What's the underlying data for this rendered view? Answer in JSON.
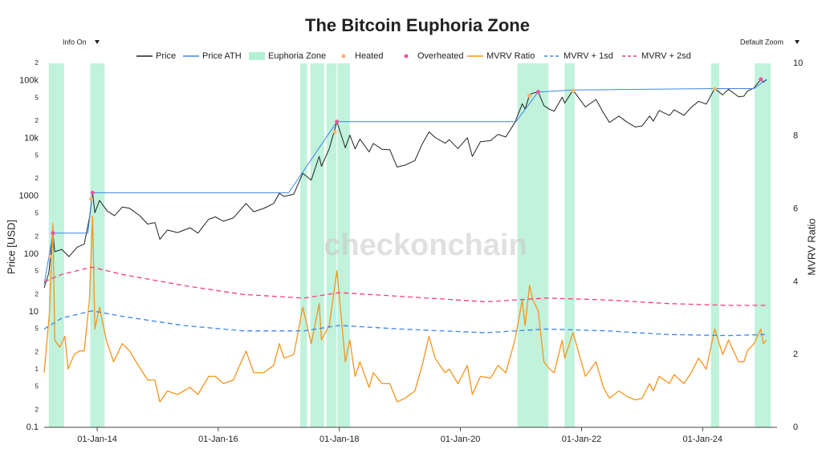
{
  "chart_data": {
    "type": "line",
    "title": "The Bitcoin Euphoria Zone",
    "controls": [
      "Info On",
      "Default Zoom"
    ],
    "watermark": "checkonchain",
    "ylabel": "Price [USD]",
    "y2label": "MVRV Ratio",
    "log_y": true,
    "grid": false,
    "legend": "top",
    "xlim": [
      "2013-02-15",
      "2025-03-25"
    ],
    "xticks": [
      {
        "value": "2014-01-01",
        "label": "01-Jan-14"
      },
      {
        "value": "2016-01-01",
        "label": "01-Jan-16"
      },
      {
        "value": "2018-01-01",
        "label": "01-Jan-18"
      },
      {
        "value": "2020-01-01",
        "label": "01-Jan-20"
      },
      {
        "value": "2022-01-01",
        "label": "01-Jan-22"
      },
      {
        "value": "2024-01-01",
        "label": "01-Jan-24"
      }
    ],
    "ylim": [
      0.1,
      200000
    ],
    "yticks": [
      0.1,
      {
        "value": 0.2,
        "label": "2"
      },
      {
        "value": 0.5,
        "label": "5"
      },
      1,
      {
        "value": 2,
        "label": "2"
      },
      {
        "value": 5,
        "label": "5"
      },
      10,
      {
        "value": 20,
        "label": "2"
      },
      {
        "value": 50,
        "label": "5"
      },
      100,
      {
        "value": 200,
        "label": "2"
      },
      {
        "value": 500,
        "label": "5"
      },
      1000,
      {
        "value": 2000,
        "label": "2"
      },
      {
        "value": 5000,
        "label": "5"
      },
      {
        "value": 10000,
        "label": "10k"
      },
      {
        "value": 20000,
        "label": "2"
      },
      {
        "value": 50000,
        "label": "5"
      },
      {
        "value": 100000,
        "label": "100k"
      },
      {
        "value": 200000,
        "label": "2"
      }
    ],
    "y2lim": [
      0,
      10
    ],
    "y2ticks": [
      0,
      2,
      4,
      6,
      8,
      10
    ],
    "series": [
      {
        "name": "Price",
        "style": "line",
        "color": "#222222",
        "x": [
          "2013-02-15",
          "2013-03-15",
          "2013-04-09",
          "2013-04-20",
          "2013-06-01",
          "2013-07-15",
          "2013-09-01",
          "2013-10-15",
          "2013-11-15",
          "2013-12-04",
          "2013-12-18",
          "2014-01-15",
          "2014-03-01",
          "2014-04-15",
          "2014-06-01",
          "2014-07-15",
          "2014-09-15",
          "2014-11-01",
          "2014-12-15",
          "2015-01-14",
          "2015-03-01",
          "2015-05-01",
          "2015-07-15",
          "2015-09-01",
          "2015-11-04",
          "2015-12-15",
          "2016-02-01",
          "2016-04-01",
          "2016-06-17",
          "2016-08-02",
          "2016-10-01",
          "2016-12-01",
          "2017-01-04",
          "2017-02-01",
          "2017-04-01",
          "2017-05-25",
          "2017-07-15",
          "2017-09-01",
          "2017-09-15",
          "2017-11-01",
          "2017-12-17",
          "2018-02-06",
          "2018-03-05",
          "2018-04-06",
          "2018-05-05",
          "2018-06-29",
          "2018-07-25",
          "2018-09-15",
          "2018-11-01",
          "2018-12-15",
          "2019-02-01",
          "2019-04-01",
          "2019-05-15",
          "2019-06-26",
          "2019-08-01",
          "2019-09-30",
          "2019-10-26",
          "2019-12-17",
          "2020-02-12",
          "2020-03-13",
          "2020-05-01",
          "2020-07-01",
          "2020-08-15",
          "2020-10-01",
          "2020-11-25",
          "2021-01-08",
          "2021-01-25",
          "2021-02-21",
          "2021-03-13",
          "2021-04-14",
          "2021-05-19",
          "2021-06-22",
          "2021-07-20",
          "2021-09-06",
          "2021-09-21",
          "2021-11-10",
          "2022-01-24",
          "2022-03-29",
          "2022-05-12",
          "2022-06-18",
          "2022-08-14",
          "2022-10-01",
          "2022-11-21",
          "2023-01-01",
          "2023-02-15",
          "2023-03-10",
          "2023-04-14",
          "2023-06-15",
          "2023-07-13",
          "2023-09-11",
          "2023-10-24",
          "2023-12-08",
          "2024-01-23",
          "2024-03-14",
          "2024-05-01",
          "2024-06-05",
          "2024-08-05",
          "2024-09-06",
          "2024-09-27",
          "2024-11-06",
          "2024-12-17",
          "2025-01-01",
          "2025-01-20"
        ],
        "values": [
          26,
          47,
          230,
          110,
          120,
          90,
          130,
          150,
          420,
          1150,
          520,
          850,
          560,
          460,
          650,
          620,
          460,
          330,
          350,
          180,
          260,
          235,
          285,
          230,
          400,
          440,
          370,
          420,
          750,
          540,
          615,
          750,
          1130,
          990,
          1090,
          2500,
          1900,
          4900,
          3300,
          6700,
          19500,
          6900,
          11500,
          6600,
          9800,
          5850,
          8200,
          6500,
          6400,
          3200,
          3450,
          4150,
          8000,
          13000,
          10400,
          8300,
          9500,
          6700,
          10300,
          4900,
          8800,
          9200,
          11800,
          10600,
          19000,
          40000,
          32000,
          57000,
          61000,
          64000,
          37000,
          32000,
          29800,
          52000,
          41000,
          69000,
          35000,
          47500,
          28000,
          19000,
          24400,
          19300,
          15800,
          16500,
          24500,
          20000,
          30500,
          25000,
          31400,
          25100,
          34500,
          44000,
          39500,
          73000,
          57000,
          71000,
          53000,
          54000,
          66000,
          75000,
          106000,
          94000,
          104000
        ]
      },
      {
        "name": "Price ATH",
        "style": "line",
        "color": "#3d85e6",
        "x": [
          "2013-02-15",
          "2013-04-09",
          "2013-11-06",
          "2013-12-04",
          "2017-03-01",
          "2017-12-17",
          "2020-12-01",
          "2021-04-14",
          "2021-11-10",
          "2024-03-14",
          "2024-11-06",
          "2025-01-20"
        ],
        "values": [
          30,
          230,
          230,
          1150,
          1150,
          19500,
          19500,
          64000,
          69000,
          73000,
          73000,
          106000
        ]
      },
      {
        "name": "Euphoria Zone",
        "style": "band",
        "color": "#b5f0d6",
        "ranges": [
          [
            "2013-03-15",
            "2013-06-15"
          ],
          [
            "2013-11-20",
            "2014-02-15"
          ],
          [
            "2017-05-10",
            "2017-06-20"
          ],
          [
            "2017-07-10",
            "2017-10-01"
          ],
          [
            "2017-10-15",
            "2017-12-15"
          ],
          [
            "2017-12-20",
            "2018-03-05"
          ],
          [
            "2020-12-10",
            "2021-06-15"
          ],
          [
            "2021-09-20",
            "2021-11-20"
          ],
          [
            "2024-02-20",
            "2024-04-10"
          ],
          [
            "2024-11-10",
            "2025-02-15"
          ]
        ]
      },
      {
        "name": "Heated",
        "style": "points",
        "color": "#f9b46c",
        "x": [
          "2013-03-25",
          "2013-11-25",
          "2017-12-05",
          "2021-02-20",
          "2021-11-10",
          "2024-03-14"
        ],
        "values": [
          90,
          900,
          13000,
          55000,
          67000,
          72000
        ]
      },
      {
        "name": "Overheated",
        "style": "points",
        "color": "#e8569b",
        "x": [
          "2013-04-09",
          "2013-12-04",
          "2017-12-17",
          "2021-04-14",
          "2024-12-17"
        ],
        "values": [
          230,
          1150,
          19500,
          64000,
          106000
        ]
      },
      {
        "name": "MVRV Ratio",
        "style": "line",
        "axis": "y2",
        "color": "#f7941d",
        "x": [
          "2013-02-15",
          "2013-03-20",
          "2013-04-09",
          "2013-04-20",
          "2013-05-20",
          "2013-06-20",
          "2013-07-10",
          "2013-08-15",
          "2013-09-15",
          "2013-10-15",
          "2013-11-15",
          "2013-12-04",
          "2013-12-18",
          "2014-01-15",
          "2014-02-25",
          "2014-04-10",
          "2014-06-01",
          "2014-07-15",
          "2014-09-20",
          "2014-11-01",
          "2014-12-15",
          "2015-01-14",
          "2015-03-01",
          "2015-05-01",
          "2015-07-15",
          "2015-09-01",
          "2015-11-04",
          "2015-12-15",
          "2016-02-01",
          "2016-04-01",
          "2016-06-17",
          "2016-08-02",
          "2016-10-01",
          "2016-12-01",
          "2017-01-04",
          "2017-02-01",
          "2017-04-01",
          "2017-05-25",
          "2017-07-15",
          "2017-09-01",
          "2017-09-15",
          "2017-11-01",
          "2017-12-17",
          "2018-02-06",
          "2018-03-05",
          "2018-04-06",
          "2018-05-05",
          "2018-06-29",
          "2018-07-25",
          "2018-09-15",
          "2018-11-01",
          "2018-12-15",
          "2019-02-01",
          "2019-04-01",
          "2019-05-15",
          "2019-06-26",
          "2019-08-01",
          "2019-09-30",
          "2019-10-26",
          "2019-12-17",
          "2020-02-12",
          "2020-03-13",
          "2020-05-01",
          "2020-07-01",
          "2020-08-15",
          "2020-10-01",
          "2020-11-25",
          "2021-01-08",
          "2021-01-25",
          "2021-02-21",
          "2021-03-13",
          "2021-04-14",
          "2021-05-19",
          "2021-06-22",
          "2021-07-20",
          "2021-09-06",
          "2021-09-21",
          "2021-11-10",
          "2022-01-24",
          "2022-03-29",
          "2022-05-12",
          "2022-06-18",
          "2022-08-14",
          "2022-10-01",
          "2022-11-21",
          "2023-01-01",
          "2023-02-15",
          "2023-03-10",
          "2023-04-14",
          "2023-06-15",
          "2023-07-13",
          "2023-09-11",
          "2023-10-24",
          "2023-12-08",
          "2024-01-23",
          "2024-03-14",
          "2024-05-01",
          "2024-06-05",
          "2024-08-05",
          "2024-09-06",
          "2024-09-27",
          "2024-11-06",
          "2024-12-17",
          "2025-01-01",
          "2025-01-20"
        ],
        "values": [
          1.5,
          3.2,
          5.6,
          2.4,
          2.2,
          2.5,
          1.6,
          2.0,
          2.1,
          2.1,
          3.5,
          5.8,
          2.7,
          3.3,
          2.4,
          1.8,
          2.3,
          2.1,
          1.6,
          1.3,
          1.3,
          0.7,
          1.0,
          0.9,
          1.1,
          0.9,
          1.4,
          1.4,
          1.2,
          1.3,
          2.1,
          1.5,
          1.5,
          1.7,
          2.3,
          1.9,
          2.0,
          3.3,
          2.3,
          3.4,
          2.4,
          2.8,
          4.3,
          1.8,
          2.4,
          1.4,
          1.8,
          1.1,
          1.5,
          1.2,
          1.2,
          0.7,
          0.8,
          1.0,
          1.7,
          2.5,
          1.9,
          1.5,
          1.6,
          1.2,
          1.7,
          0.9,
          1.4,
          1.35,
          1.7,
          1.5,
          2.4,
          3.5,
          2.8,
          3.9,
          3.5,
          3.2,
          1.8,
          1.6,
          1.5,
          2.4,
          1.9,
          2.6,
          1.4,
          1.8,
          1.1,
          0.8,
          1.0,
          0.85,
          0.75,
          0.8,
          1.2,
          1.0,
          1.4,
          1.2,
          1.45,
          1.2,
          1.5,
          1.9,
          1.6,
          2.7,
          2.0,
          2.4,
          1.8,
          1.8,
          2.1,
          2.3,
          2.7,
          2.3,
          2.4
        ]
      },
      {
        "name": "MVRV + 1sd",
        "style": "line",
        "axis": "y2",
        "dash": true,
        "color": "#3d85e6",
        "x": [
          "2013-02-15",
          "2013-06-01",
          "2013-12-01",
          "2014-06-01",
          "2015-06-01",
          "2016-06-01",
          "2017-06-01",
          "2018-01-01",
          "2019-01-01",
          "2020-06-01",
          "2021-06-01",
          "2022-06-01",
          "2023-06-01",
          "2024-06-01",
          "2025-01-20"
        ],
        "values": [
          2.7,
          3.0,
          3.2,
          3.05,
          2.8,
          2.65,
          2.65,
          2.8,
          2.7,
          2.6,
          2.7,
          2.65,
          2.55,
          2.52,
          2.55
        ]
      },
      {
        "name": "MVRV + 2sd",
        "style": "line",
        "axis": "y2",
        "dash": true,
        "color": "#f0407a",
        "x": [
          "2013-02-15",
          "2013-06-01",
          "2013-12-01",
          "2014-06-01",
          "2015-06-01",
          "2016-06-01",
          "2017-06-01",
          "2018-01-01",
          "2019-01-01",
          "2020-06-01",
          "2021-06-01",
          "2022-06-01",
          "2023-06-01",
          "2024-06-01",
          "2025-01-20"
        ],
        "values": [
          4.0,
          4.2,
          4.4,
          4.2,
          3.9,
          3.65,
          3.55,
          3.7,
          3.6,
          3.45,
          3.55,
          3.5,
          3.4,
          3.35,
          3.35
        ]
      }
    ]
  }
}
